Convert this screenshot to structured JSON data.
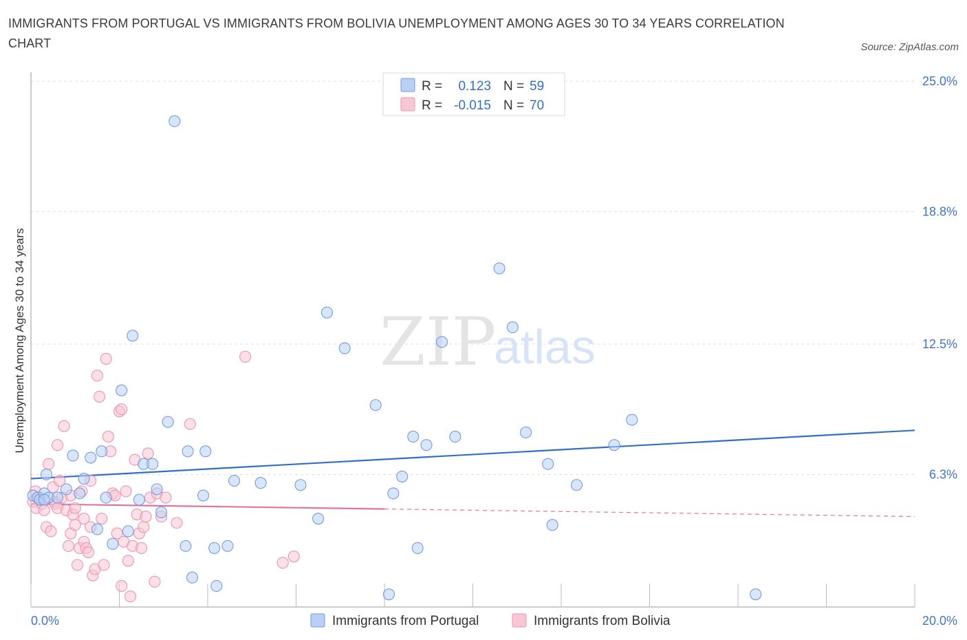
{
  "header": {
    "title": "IMMIGRANTS FROM PORTUGAL VS IMMIGRANTS FROM BOLIVIA UNEMPLOYMENT AMONG AGES 30 TO 34 YEARS CORRELATION CHART",
    "source": "Source: ZipAtlas.com"
  },
  "watermark": {
    "zip": "ZIP",
    "atlas": "atlas"
  },
  "legend": {
    "r_label": "R =",
    "n_label": "N =",
    "portugal": {
      "r": "0.123",
      "n": "59"
    },
    "bolivia": {
      "r": "-0.015",
      "n": "70"
    }
  },
  "colors": {
    "portugal_fill": "#b9d0f4",
    "portugal_stroke": "#6f9de0",
    "portugal_line": "#2f6fc9",
    "bolivia_fill": "#f8c7d6",
    "bolivia_stroke": "#ec93b0",
    "bolivia_line": "#e3739a",
    "tick": "#3f74c6",
    "grid": "#dcdcdc"
  },
  "chart_data": {
    "type": "scatter",
    "title": "IMMIGRANTS FROM PORTUGAL VS IMMIGRANTS FROM BOLIVIA UNEMPLOYMENT AMONG AGES 30 TO 34 YEARS CORRELATION CHART",
    "xlabel": "",
    "ylabel": "Unemployment Among Ages 30 to 34 years",
    "xlim": [
      0,
      20
    ],
    "ylim": [
      0,
      25
    ],
    "x_tick_labels": [
      "0.0%",
      "20.0%"
    ],
    "y_ticks": [
      6.3,
      12.5,
      18.8,
      25.0
    ],
    "y_tick_labels": [
      "6.3%",
      "12.5%",
      "18.8%",
      "25.0%"
    ],
    "grid": true,
    "legend_position": "top-center",
    "series": [
      {
        "name": "Immigrants from Portugal",
        "r": 0.123,
        "n": 59,
        "trend": [
          [
            0,
            6.1
          ],
          [
            20,
            8.4
          ]
        ],
        "points": [
          [
            0.05,
            5.3
          ],
          [
            0.15,
            5.2
          ],
          [
            0.2,
            5.1
          ],
          [
            0.3,
            5.4
          ],
          [
            0.35,
            6.3
          ],
          [
            0.4,
            5.2
          ],
          [
            0.6,
            5.2
          ],
          [
            0.8,
            5.6
          ],
          [
            0.95,
            7.2
          ],
          [
            1.1,
            5.4
          ],
          [
            1.2,
            6.1
          ],
          [
            1.35,
            7.1
          ],
          [
            1.5,
            3.7
          ],
          [
            1.6,
            7.4
          ],
          [
            1.7,
            5.2
          ],
          [
            1.85,
            3.0
          ],
          [
            2.05,
            10.3
          ],
          [
            2.2,
            3.6
          ],
          [
            2.3,
            12.9
          ],
          [
            2.45,
            5.1
          ],
          [
            2.55,
            6.8
          ],
          [
            2.75,
            6.8
          ],
          [
            2.85,
            5.6
          ],
          [
            2.95,
            4.5
          ],
          [
            3.1,
            8.8
          ],
          [
            3.25,
            23.1
          ],
          [
            3.5,
            2.9
          ],
          [
            3.55,
            7.4
          ],
          [
            3.65,
            1.4
          ],
          [
            3.9,
            5.3
          ],
          [
            3.95,
            7.4
          ],
          [
            4.15,
            2.8
          ],
          [
            4.2,
            1.0
          ],
          [
            4.45,
            2.9
          ],
          [
            4.6,
            6.0
          ],
          [
            5.2,
            5.9
          ],
          [
            6.1,
            5.8
          ],
          [
            6.5,
            4.2
          ],
          [
            6.7,
            14.0
          ],
          [
            7.1,
            12.3
          ],
          [
            7.8,
            9.6
          ],
          [
            8.1,
            0.6
          ],
          [
            8.2,
            5.4
          ],
          [
            8.4,
            6.2
          ],
          [
            8.65,
            8.1
          ],
          [
            8.75,
            2.8
          ],
          [
            8.95,
            7.7
          ],
          [
            9.3,
            12.6
          ],
          [
            9.6,
            8.1
          ],
          [
            10.6,
            16.1
          ],
          [
            10.9,
            13.3
          ],
          [
            11.2,
            8.3
          ],
          [
            11.7,
            6.8
          ],
          [
            11.8,
            3.9
          ],
          [
            12.35,
            5.8
          ],
          [
            13.2,
            7.7
          ],
          [
            13.6,
            8.9
          ],
          [
            16.4,
            0.6
          ],
          [
            0.3,
            5.1
          ]
        ]
      },
      {
        "name": "Immigrants from Bolivia",
        "r": -0.015,
        "n": 70,
        "trend": [
          [
            0,
            4.9
          ],
          [
            20,
            4.3
          ]
        ],
        "trend_solid_until_x": 8.0,
        "points": [
          [
            0.05,
            5.0
          ],
          [
            0.1,
            5.5
          ],
          [
            0.12,
            4.7
          ],
          [
            0.2,
            5.2
          ],
          [
            0.25,
            4.9
          ],
          [
            0.3,
            4.6
          ],
          [
            0.35,
            3.8
          ],
          [
            0.4,
            6.8
          ],
          [
            0.45,
            3.6
          ],
          [
            0.5,
            5.7
          ],
          [
            0.55,
            5.0
          ],
          [
            0.55,
            4.9
          ],
          [
            0.6,
            4.7
          ],
          [
            0.6,
            7.7
          ],
          [
            0.65,
            6.0
          ],
          [
            0.7,
            5.2
          ],
          [
            0.75,
            8.6
          ],
          [
            0.8,
            4.6
          ],
          [
            0.85,
            2.9
          ],
          [
            0.9,
            3.5
          ],
          [
            0.9,
            5.3
          ],
          [
            0.95,
            4.4
          ],
          [
            1.0,
            3.9
          ],
          [
            1.0,
            4.7
          ],
          [
            1.05,
            2.0
          ],
          [
            1.1,
            2.8
          ],
          [
            1.15,
            5.5
          ],
          [
            1.2,
            3.1
          ],
          [
            1.2,
            4.2
          ],
          [
            1.25,
            2.8
          ],
          [
            1.3,
            2.6
          ],
          [
            1.35,
            6.0
          ],
          [
            1.35,
            3.8
          ],
          [
            1.4,
            1.5
          ],
          [
            1.45,
            1.8
          ],
          [
            1.5,
            11.0
          ],
          [
            1.55,
            10.0
          ],
          [
            1.6,
            4.2
          ],
          [
            1.65,
            2.0
          ],
          [
            1.7,
            11.8
          ],
          [
            1.75,
            8.1
          ],
          [
            1.8,
            7.4
          ],
          [
            1.85,
            5.4
          ],
          [
            1.9,
            5.3
          ],
          [
            1.95,
            3.5
          ],
          [
            2.0,
            9.3
          ],
          [
            2.05,
            9.4
          ],
          [
            2.05,
            1.0
          ],
          [
            2.1,
            3.1
          ],
          [
            2.15,
            5.5
          ],
          [
            2.2,
            2.2
          ],
          [
            2.25,
            0.5
          ],
          [
            2.3,
            2.9
          ],
          [
            2.35,
            7.0
          ],
          [
            2.4,
            4.4
          ],
          [
            2.45,
            3.5
          ],
          [
            2.5,
            2.8
          ],
          [
            2.55,
            3.8
          ],
          [
            2.6,
            4.3
          ],
          [
            2.65,
            7.3
          ],
          [
            2.7,
            5.2
          ],
          [
            2.8,
            1.2
          ],
          [
            2.85,
            5.4
          ],
          [
            2.95,
            4.3
          ],
          [
            3.05,
            5.2
          ],
          [
            3.3,
            4.0
          ],
          [
            3.6,
            8.7
          ],
          [
            4.85,
            11.9
          ],
          [
            5.7,
            2.1
          ],
          [
            5.95,
            2.4
          ]
        ]
      }
    ]
  },
  "bottom_legend": {
    "portugal_label": "Immigrants from Portugal",
    "bolivia_label": "Immigrants from Bolivia"
  }
}
